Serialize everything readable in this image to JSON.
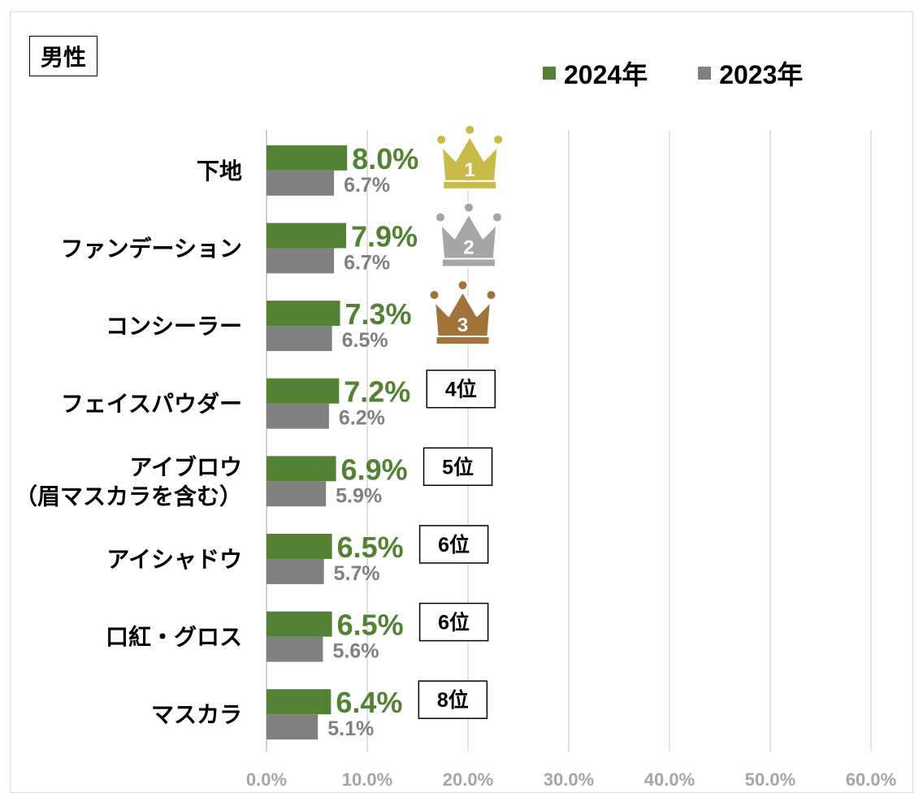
{
  "panel_label": "男性",
  "legend": [
    {
      "label": "2024年",
      "color": "#548235"
    },
    {
      "label": "2023年",
      "color": "#808080"
    }
  ],
  "colors": {
    "series_2024": "#548235",
    "series_2023": "#808080",
    "gridline": "#d9d9d9",
    "tick_label": "#a6a6a6",
    "gold": "#c9bb4a",
    "silver": "#a6a6a6",
    "bronze": "#a0733a"
  },
  "chart_data": {
    "type": "bar",
    "orientation": "horizontal",
    "categories": [
      "下地",
      "ファンデーション",
      "コンシーラー",
      "フェイスパウダー",
      "アイブロウ\n（眉マスカラを含む）",
      "アイシャドウ",
      "口紅・グロス",
      "マスカラ"
    ],
    "series": [
      {
        "name": "2024年",
        "values": [
          8.0,
          7.9,
          7.3,
          7.2,
          6.9,
          6.5,
          6.5,
          6.4
        ],
        "labels": [
          "8.0%",
          "7.9%",
          "7.3%",
          "7.2%",
          "6.9%",
          "6.5%",
          "6.5%",
          "6.4%"
        ]
      },
      {
        "name": "2023年",
        "values": [
          6.7,
          6.7,
          6.5,
          6.2,
          5.9,
          5.7,
          5.6,
          5.1
        ],
        "labels": [
          "6.7%",
          "6.7%",
          "6.5%",
          "6.2%",
          "5.9%",
          "5.7%",
          "5.6%",
          "5.1%"
        ]
      }
    ],
    "xlim": [
      0,
      60
    ],
    "xticks": [
      0,
      10,
      20,
      30,
      40,
      50,
      60
    ],
    "xtick_labels": [
      "0.0%",
      "10.0%",
      "20.0%",
      "30.0%",
      "40.0%",
      "50.0%",
      "60.0%"
    ],
    "grid": true,
    "legend_position": "top-right",
    "ranks": [
      {
        "index": 0,
        "type": "crown",
        "rank": "1",
        "medal": "gold"
      },
      {
        "index": 1,
        "type": "crown",
        "rank": "2",
        "medal": "silver"
      },
      {
        "index": 2,
        "type": "crown",
        "rank": "3",
        "medal": "bronze"
      },
      {
        "index": 3,
        "type": "box",
        "text": "4位"
      },
      {
        "index": 4,
        "type": "box",
        "text": "5位"
      },
      {
        "index": 5,
        "type": "box",
        "text": "6位"
      },
      {
        "index": 6,
        "type": "box",
        "text": "6位"
      },
      {
        "index": 7,
        "type": "box",
        "text": "8位"
      }
    ]
  }
}
